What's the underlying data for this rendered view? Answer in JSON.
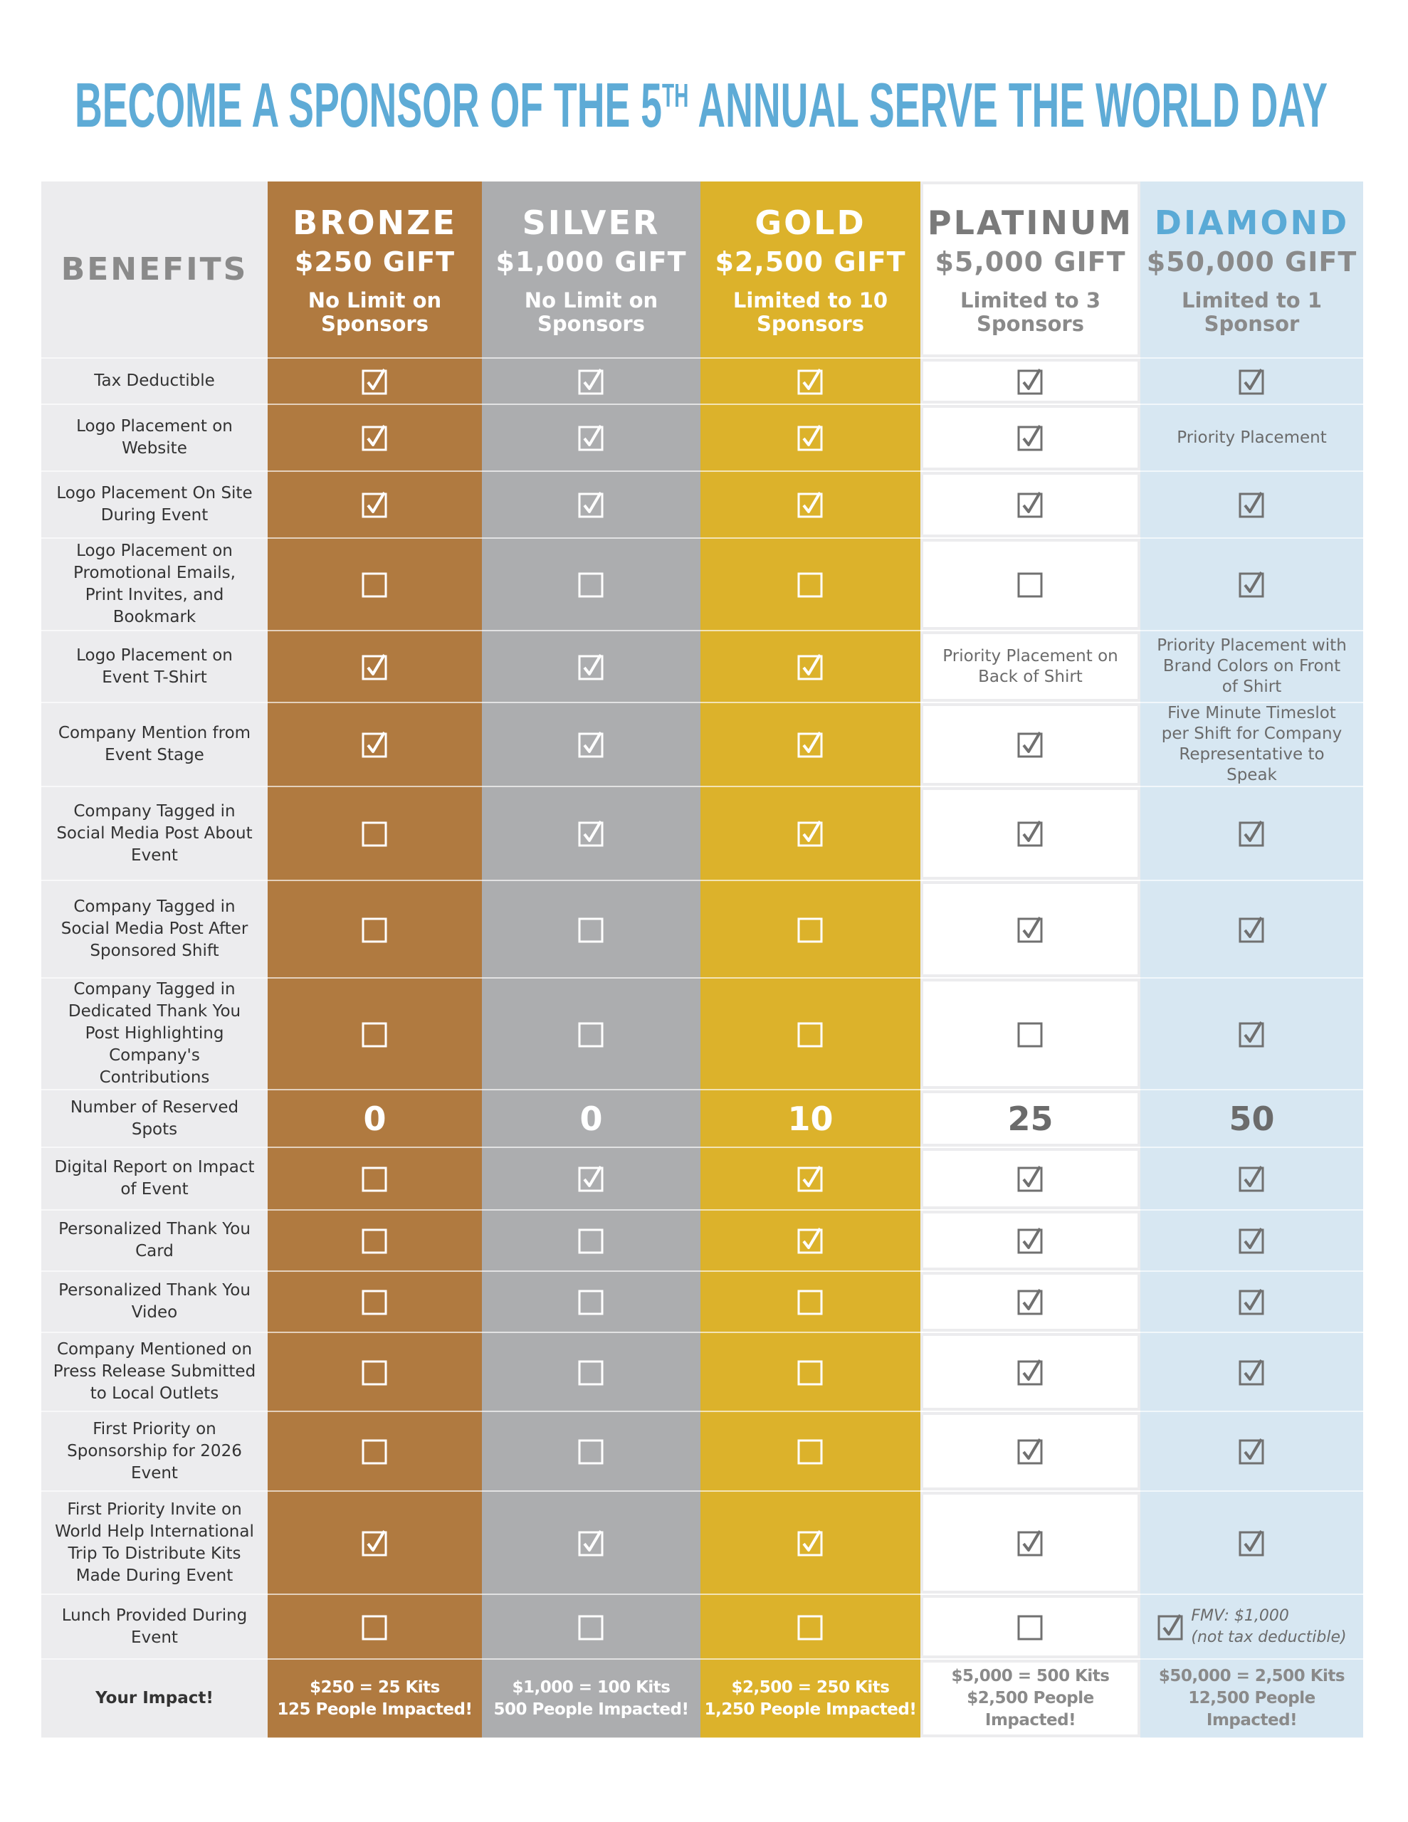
{
  "header": {
    "title": {
      "text": "BECOME A SPONSOR OF THE 5",
      "superscript": "TH",
      "rest": " ANNUAL SERVE THE WORLD DAY"
    }
  },
  "table": {
    "corner": "BENEFITS",
    "columns": [
      {
        "name": "BRONZE",
        "gift": "$250 GIFT",
        "limit": "No Limit on Sponsors"
      },
      {
        "name": "SILVER",
        "gift": "$1,000 GIFT",
        "limit": "No Limit on Sponsors"
      },
      {
        "name": "GOLD",
        "gift": "$2,500 GIFT",
        "limit": "Limited to 10 Sponsors"
      },
      {
        "name": "PLATINUM",
        "gift": "$5,000 GIFT",
        "limit": "Limited to 3 Sponsors"
      },
      {
        "name": "DIAMOND",
        "gift": "$50,000 GIFT",
        "limit": "Limited to 1 Sponsor"
      }
    ],
    "rows": [
      {
        "label": "Tax Deductible",
        "cells": [
          true,
          true,
          true,
          true,
          true
        ]
      },
      {
        "label": "Logo Placement on Website",
        "cells": [
          true,
          true,
          true,
          true,
          "Priority Placement"
        ]
      },
      {
        "label": "Logo Placement On Site During Event",
        "cells": [
          true,
          true,
          true,
          true,
          true
        ]
      },
      {
        "label": "Logo Placement on Promotional Emails, Print Invites, and Bookmark",
        "cells": [
          false,
          false,
          false,
          false,
          true
        ]
      },
      {
        "label": "Logo Placement on Event T-Shirt",
        "cells": [
          true,
          true,
          true,
          "Priority Placement on Back of Shirt",
          "Priority Placement with Brand Colors on Front of Shirt"
        ]
      },
      {
        "label": "Company Mention from Event Stage",
        "cells": [
          true,
          true,
          true,
          true,
          "Five Minute Timeslot per Shift for Company Representative to Speak"
        ]
      },
      {
        "label": "Company Tagged in Social Media Post About Event",
        "cells": [
          false,
          true,
          true,
          true,
          true
        ]
      },
      {
        "label": "Company Tagged in Social Media Post After Sponsored Shift",
        "cells": [
          false,
          false,
          false,
          true,
          true
        ]
      },
      {
        "label": "Company Tagged in Dedicated Thank You Post Highlighting Company's Contributions",
        "cells": [
          false,
          false,
          false,
          false,
          true
        ]
      },
      {
        "label": "Number of Reserved Spots",
        "cells": [
          0,
          0,
          10,
          25,
          50
        ]
      },
      {
        "label": "Digital Report on Impact of Event",
        "cells": [
          false,
          true,
          true,
          true,
          true
        ]
      },
      {
        "label": "Personalized Thank You Card",
        "cells": [
          false,
          false,
          true,
          true,
          true
        ]
      },
      {
        "label": "Personalized Thank You Video",
        "cells": [
          false,
          false,
          false,
          true,
          true
        ]
      },
      {
        "label": "Company Mentioned on Press Release Submitted to Local Outlets",
        "cells": [
          false,
          false,
          false,
          true,
          true
        ]
      },
      {
        "label": "First Priority on Sponsorship for 2026 Event",
        "cells": [
          false,
          false,
          false,
          true,
          true
        ]
      },
      {
        "label": "First Priority Invite on World Help International Trip To Distribute Kits Made During Event",
        "cells": [
          true,
          true,
          true,
          true,
          true
        ]
      },
      {
        "label": "Lunch Provided During Event",
        "cells": [
          false,
          false,
          false,
          false,
          {
            "checked": true,
            "note": [
              "FMV: $1,000",
              "(not tax deductible)"
            ]
          }
        ]
      },
      {
        "label": "Your Impact!",
        "cells": [
          [
            "$250 = 25 Kits",
            "125 People Impacted!"
          ],
          [
            "$1,000 = 100 Kits",
            "500 People Impacted!"
          ],
          [
            "$2,500 = 250 Kits",
            "1,250 People Impacted!"
          ],
          [
            "$5,000 = 500 Kits",
            "$2,500 People Impacted!"
          ],
          [
            "$50,000 = 2,500 Kits",
            "12,500 People Impacted!"
          ]
        ]
      }
    ]
  }
}
